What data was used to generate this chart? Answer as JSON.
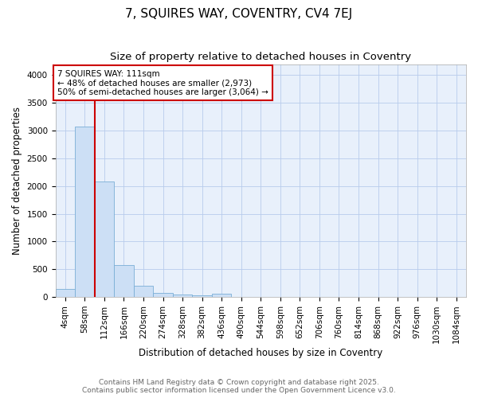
{
  "title": "7, SQUIRES WAY, COVENTRY, CV4 7EJ",
  "subtitle": "Size of property relative to detached houses in Coventry",
  "xlabel": "Distribution of detached houses by size in Coventry",
  "ylabel": "Number of detached properties",
  "bar_labels": [
    "4sqm",
    "58sqm",
    "112sqm",
    "166sqm",
    "220sqm",
    "274sqm",
    "328sqm",
    "382sqm",
    "436sqm",
    "490sqm",
    "544sqm",
    "598sqm",
    "652sqm",
    "706sqm",
    "760sqm",
    "814sqm",
    "868sqm",
    "922sqm",
    "976sqm",
    "1030sqm",
    "1084sqm"
  ],
  "bar_values": [
    140,
    3080,
    2080,
    580,
    200,
    75,
    50,
    30,
    55,
    0,
    0,
    0,
    0,
    0,
    0,
    0,
    0,
    0,
    0,
    0,
    0
  ],
  "bar_color": "#ccdff5",
  "bar_edge_color": "#7aaed6",
  "reference_line_x": 1.5,
  "reference_line_color": "#cc0000",
  "annotation_title": "7 SQUIRES WAY: 111sqm",
  "annotation_line1": "← 48% of detached houses are smaller (2,973)",
  "annotation_line2": "50% of semi-detached houses are larger (3,064) →",
  "annotation_box_color": "#cc0000",
  "ylim": [
    0,
    4200
  ],
  "yticks": [
    0,
    500,
    1000,
    1500,
    2000,
    2500,
    3000,
    3500,
    4000
  ],
  "plot_bg_color": "#e8f0fb",
  "footer_line1": "Contains HM Land Registry data © Crown copyright and database right 2025.",
  "footer_line2": "Contains public sector information licensed under the Open Government Licence v3.0.",
  "title_fontsize": 11,
  "subtitle_fontsize": 9.5,
  "axis_label_fontsize": 8.5,
  "tick_fontsize": 7.5,
  "footer_fontsize": 6.5
}
